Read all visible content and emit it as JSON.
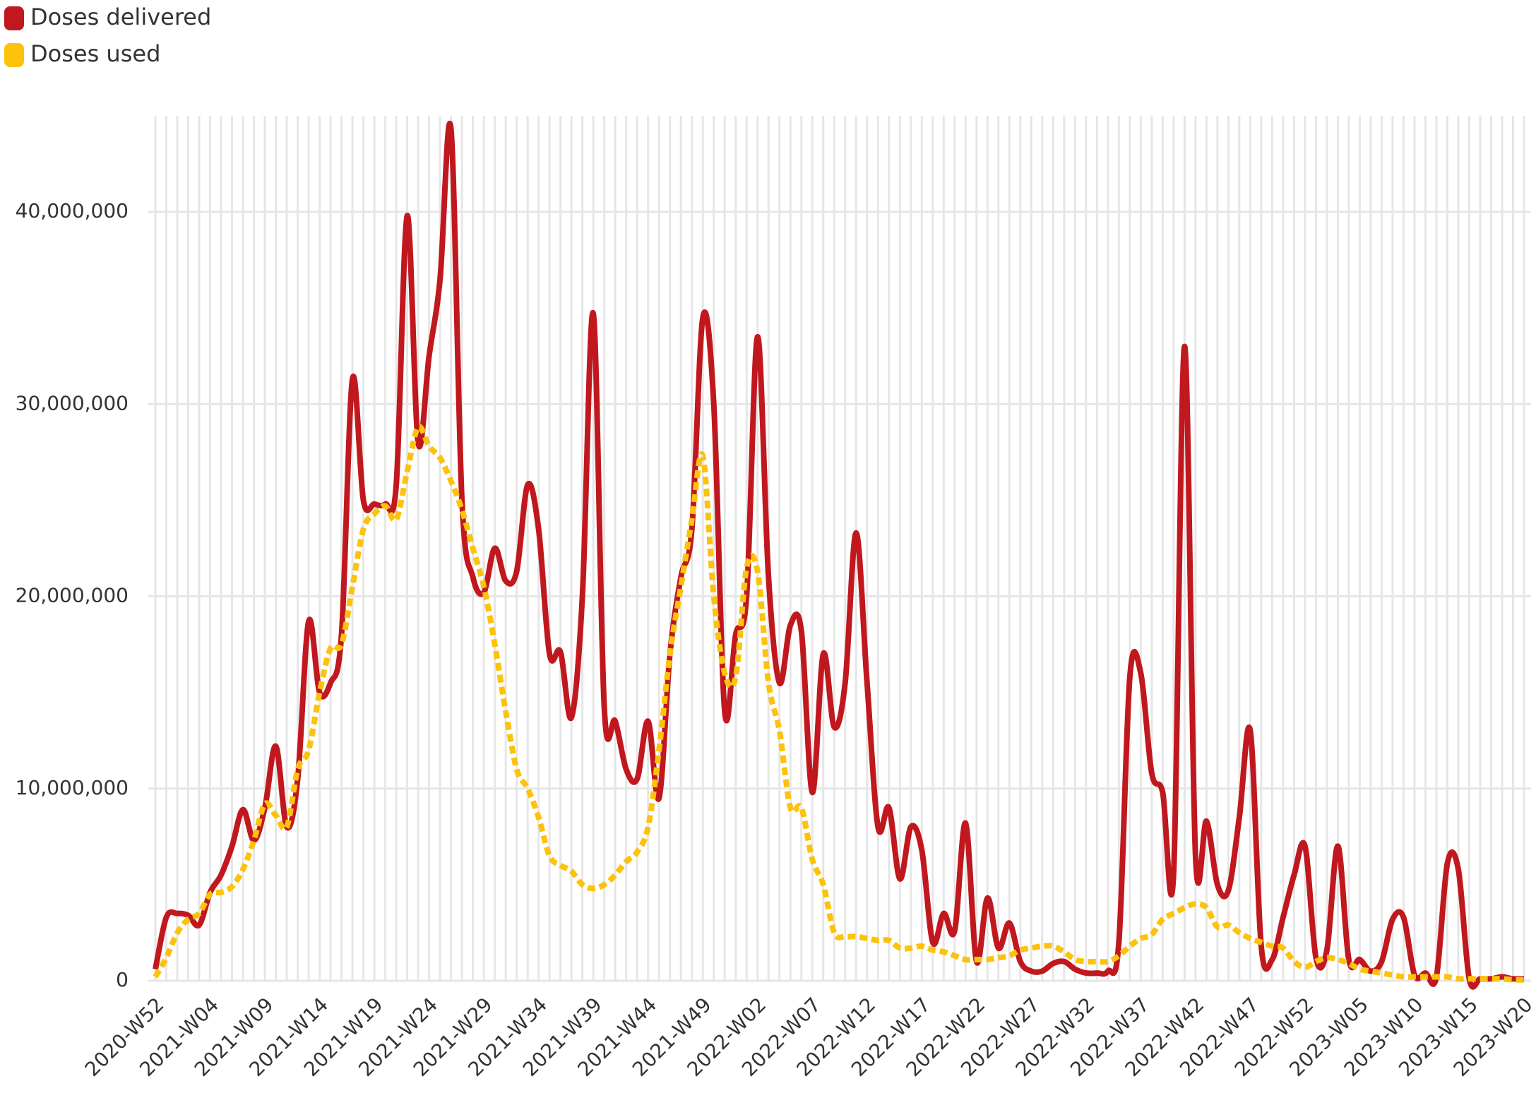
{
  "chart_data": {
    "type": "line",
    "categories": [
      "2020-W52",
      null,
      null,
      null,
      null,
      "2021-W04",
      null,
      null,
      null,
      null,
      "2021-W09",
      null,
      null,
      null,
      null,
      "2021-W14",
      null,
      null,
      null,
      null,
      "2021-W19",
      null,
      null,
      null,
      null,
      "2021-W24",
      null,
      null,
      null,
      null,
      "2021-W29",
      null,
      null,
      null,
      null,
      "2021-W34",
      null,
      null,
      null,
      null,
      "2021-W39",
      null,
      null,
      null,
      null,
      "2021-W44",
      null,
      null,
      null,
      null,
      "2021-W49",
      null,
      null,
      null,
      null,
      "2022-W02",
      null,
      null,
      null,
      null,
      "2022-W07",
      null,
      null,
      null,
      null,
      "2022-W12",
      null,
      null,
      null,
      null,
      "2022-W17",
      null,
      null,
      null,
      null,
      "2022-W22",
      null,
      null,
      null,
      null,
      "2022-W27",
      null,
      null,
      null,
      null,
      "2022-W32",
      null,
      null,
      null,
      null,
      "2022-W37",
      null,
      null,
      null,
      null,
      "2022-W42",
      null,
      null,
      null,
      null,
      "2022-W47",
      null,
      null,
      null,
      null,
      "2022-W52",
      null,
      null,
      null,
      null,
      "2023-W05",
      null,
      null,
      null,
      null,
      "2023-W10",
      null,
      null,
      null,
      null,
      "2023-W15",
      null,
      null,
      null,
      null,
      "2023-W20"
    ],
    "series": [
      {
        "name": "Doses delivered",
        "color": "#c0181e",
        "values": [
          600000.0,
          3300000.0,
          3500000.0,
          3400000.0,
          2900000.0,
          4600000.0,
          5500000.0,
          7000000.0,
          8900000.0,
          7300000.0,
          9000000.0,
          12200000.0,
          8000000.0,
          10500000.0,
          18700000.0,
          15000000.0,
          15500000.0,
          18000000.0,
          31300000.0,
          25000000.0,
          24800000.0,
          24800000.0,
          25800000.0,
          39800000.0,
          28000000.0,
          32500000.0,
          36500000.0,
          44300000.0,
          25000000.0,
          21000000.0,
          20200000.0,
          22500000.0,
          20800000.0,
          21300000.0,
          25800000.0,
          23500000.0,
          17000000.0,
          17100000.0,
          13700000.0,
          20000000.0,
          34700000.0,
          14200000.0,
          13500000.0,
          11000000.0,
          10500000.0,
          13500000.0,
          9500000.0,
          17000000.0,
          21000000.0,
          23500000.0,
          34500000.0,
          30000000.0,
          14000000.0,
          18000000.0,
          20000000.0,
          33500000.0,
          21000000.0,
          15500000.0,
          18500000.0,
          18200000.0,
          9800000.0,
          17000000.0,
          13200000.0,
          15500000.0,
          23300000.0,
          15500000.0,
          8000000.0,
          9000000.0,
          5300000.0,
          8000000.0,
          6800000.0,
          2000000.0,
          3500000.0,
          2600000.0,
          8200000.0,
          1000000.0,
          4300000.0,
          1700000.0,
          3000000.0,
          1000000.0,
          500000.0,
          500000.0,
          900000.0,
          1000000.0,
          600000.0,
          400000.0,
          400000.0,
          500000.0,
          2000000.0,
          15800000.0,
          16000000.0,
          10800000.0,
          9800000.0,
          5600000.0,
          33000000.0,
          6500000.0,
          8300000.0,
          5000000.0,
          4700000.0,
          8500000.0,
          13000000.0,
          1800000.0,
          1100000.0,
          3300000.0,
          5500000.0,
          7000000.0,
          1200000.0,
          1600000.0,
          7000000.0,
          1100000.0,
          1100000.0,
          500000.0,
          1000000.0,
          3200000.0,
          3300000.0,
          300000.0,
          400000.0,
          200000.0,
          6100000.0,
          5800000.0,
          100000.0,
          100000.0,
          100000.0,
          200000.0,
          100000.0,
          100000.0
        ]
      },
      {
        "name": "Doses used",
        "color": "#fcc20c",
        "values": [
          200000.0,
          1200000.0,
          2500000.0,
          3200000.0,
          3500000.0,
          4500000.0,
          4600000.0,
          4900000.0,
          5800000.0,
          7300000.0,
          9200000.0,
          8600000.0,
          8000000.0,
          11000000.0,
          12000000.0,
          15000000.0,
          17300000.0,
          17500000.0,
          20500000.0,
          23500000.0,
          24300000.0,
          24700000.0,
          24000000.0,
          26500000.0,
          28800000.0,
          27800000.0,
          27200000.0,
          26000000.0,
          24500000.0,
          22500000.0,
          20500000.0,
          17500000.0,
          14000000.0,
          11000000.0,
          10000000.0,
          8500000.0,
          6500000.0,
          6000000.0,
          5700000.0,
          5000000.0,
          4800000.0,
          5000000.0,
          5500000.0,
          6200000.0,
          6700000.0,
          8000000.0,
          12000000.0,
          17000000.0,
          20500000.0,
          24000000.0,
          27300000.0,
          20000000.0,
          16000000.0,
          15800000.0,
          21500000.0,
          21300000.0,
          15500000.0,
          13000000.0,
          9000000.0,
          9000000.0,
          6300000.0,
          5000000.0,
          2500000.0,
          2300000.0,
          2300000.0,
          2200000.0,
          2100000.0,
          2100000.0,
          1700000.0,
          1700000.0,
          1800000.0,
          1600000.0,
          1500000.0,
          1300000.0,
          1100000.0,
          1100000.0,
          1100000.0,
          1200000.0,
          1300000.0,
          1600000.0,
          1700000.0,
          1800000.0,
          1800000.0,
          1500000.0,
          1100000.0,
          1000000.0,
          1000000.0,
          1000000.0,
          1300000.0,
          1800000.0,
          2200000.0,
          2400000.0,
          3200000.0,
          3500000.0,
          3800000.0,
          4000000.0,
          3800000.0,
          2800000.0,
          2900000.0,
          2500000.0,
          2200000.0,
          2000000.0,
          1800000.0,
          1700000.0,
          1000000.0,
          700000.0,
          1000000.0,
          1200000.0,
          1100000.0,
          900000.0,
          600000.0,
          500000.0,
          400000.0,
          300000.0,
          200000.0,
          200000.0,
          200000.0,
          200000.0,
          200000.0,
          100000.0,
          100000.0,
          100000.0,
          100000.0,
          100000.0,
          50000.0,
          50000.0
        ]
      }
    ],
    "ylim": [
      0,
      45000000
    ],
    "yticks": [
      0,
      {
        "value": 10000000,
        "label": "10,000,000"
      },
      {
        "value": 20000000,
        "label": "20,000,000"
      },
      {
        "value": 30000000,
        "label": "30,000,000"
      },
      {
        "value": 40000000,
        "label": "40,000,000"
      }
    ],
    "grid": true,
    "legend": "top-left"
  }
}
